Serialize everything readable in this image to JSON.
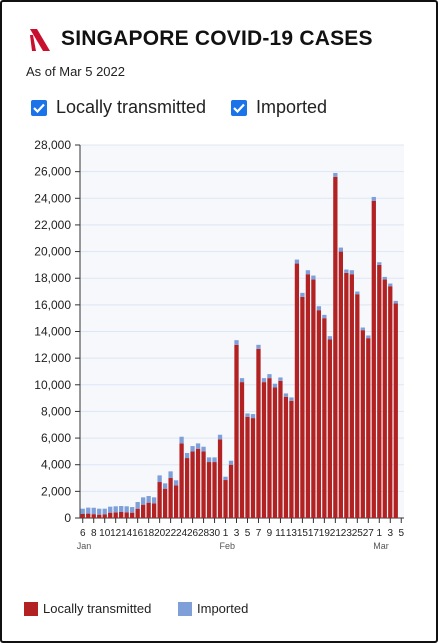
{
  "header": {
    "title": "SINGAPORE COVID-19 CASES",
    "subtitle": "As of Mar 5 2022"
  },
  "toggles": [
    {
      "label": "Locally transmitted",
      "checked": true
    },
    {
      "label": "Imported",
      "checked": true
    }
  ],
  "legend": [
    {
      "label": "Locally transmitted",
      "color": "#b22222"
    },
    {
      "label": "Imported",
      "color": "#7f9fd9"
    }
  ],
  "colors": {
    "local": "#b22222",
    "imported": "#7f9fd9",
    "accent": "#c8102e",
    "checkbox": "#1a73e8"
  },
  "chart_data": {
    "type": "bar",
    "stacked": true,
    "ylim": [
      0,
      28000
    ],
    "yticks": [
      "0",
      "2,000",
      "4,000",
      "6,000",
      "8,000",
      "10,000",
      "12,000",
      "14,000",
      "16,000",
      "18,000",
      "20,000",
      "22,000",
      "24,000",
      "26,000",
      "28,000"
    ],
    "grid": true,
    "legend_position": "bottom",
    "xtick_labels": [
      "6",
      "8",
      "10",
      "12",
      "14",
      "16",
      "18",
      "20",
      "22",
      "24",
      "26",
      "28",
      "30",
      "1",
      "3",
      "5",
      "7",
      "9",
      "11",
      "13",
      "15",
      "17",
      "19",
      "21",
      "23",
      "25",
      "27",
      "1",
      "3",
      "5"
    ],
    "month_labels": [
      "Jan",
      "Feb",
      "Mar"
    ],
    "categories": [
      "Jan 6",
      "Jan 7",
      "Jan 8",
      "Jan 9",
      "Jan 10",
      "Jan 11",
      "Jan 12",
      "Jan 13",
      "Jan 14",
      "Jan 15",
      "Jan 16",
      "Jan 17",
      "Jan 18",
      "Jan 19",
      "Jan 20",
      "Jan 21",
      "Jan 22",
      "Jan 23",
      "Jan 24",
      "Jan 25",
      "Jan 26",
      "Jan 27",
      "Jan 28",
      "Jan 29",
      "Jan 30",
      "Jan 31",
      "Feb 1",
      "Feb 2",
      "Feb 3",
      "Feb 4",
      "Feb 5",
      "Feb 6",
      "Feb 7",
      "Feb 8",
      "Feb 9",
      "Feb 10",
      "Feb 11",
      "Feb 12",
      "Feb 13",
      "Feb 14",
      "Feb 15",
      "Feb 16",
      "Feb 17",
      "Feb 18",
      "Feb 19",
      "Feb 20",
      "Feb 21",
      "Feb 22",
      "Feb 23",
      "Feb 24",
      "Feb 25",
      "Feb 26",
      "Feb 27",
      "Feb 28",
      "Mar 1",
      "Mar 2",
      "Mar 3",
      "Mar 4",
      "Mar 5"
    ],
    "series": [
      {
        "name": "Locally transmitted",
        "values": [
          300,
          330,
          290,
          250,
          280,
          400,
          420,
          450,
          430,
          400,
          700,
          1000,
          1150,
          1100,
          2700,
          2200,
          3000,
          2450,
          5600,
          4500,
          5000,
          5200,
          5000,
          4200,
          4200,
          5900,
          2850,
          4000,
          13000,
          10200,
          7600,
          7500,
          12700,
          10200,
          10500,
          9800,
          10300,
          9100,
          8800,
          19100,
          16600,
          18300,
          17900,
          15600,
          15000,
          13400,
          25600,
          20000,
          18400,
          18300,
          16800,
          14100,
          13500,
          23800,
          19000,
          17900,
          17400,
          16100,
          0
        ]
      },
      {
        "name": "Imported",
        "values": [
          400,
          450,
          480,
          450,
          420,
          450,
          460,
          450,
          450,
          420,
          500,
          550,
          500,
          450,
          500,
          400,
          500,
          380,
          500,
          380,
          400,
          400,
          350,
          350,
          350,
          350,
          250,
          300,
          350,
          300,
          250,
          300,
          300,
          300,
          300,
          280,
          250,
          250,
          250,
          300,
          300,
          300,
          300,
          300,
          250,
          250,
          300,
          300,
          250,
          300,
          200,
          200,
          200,
          300,
          200,
          200,
          200,
          200,
          0
        ]
      }
    ]
  }
}
